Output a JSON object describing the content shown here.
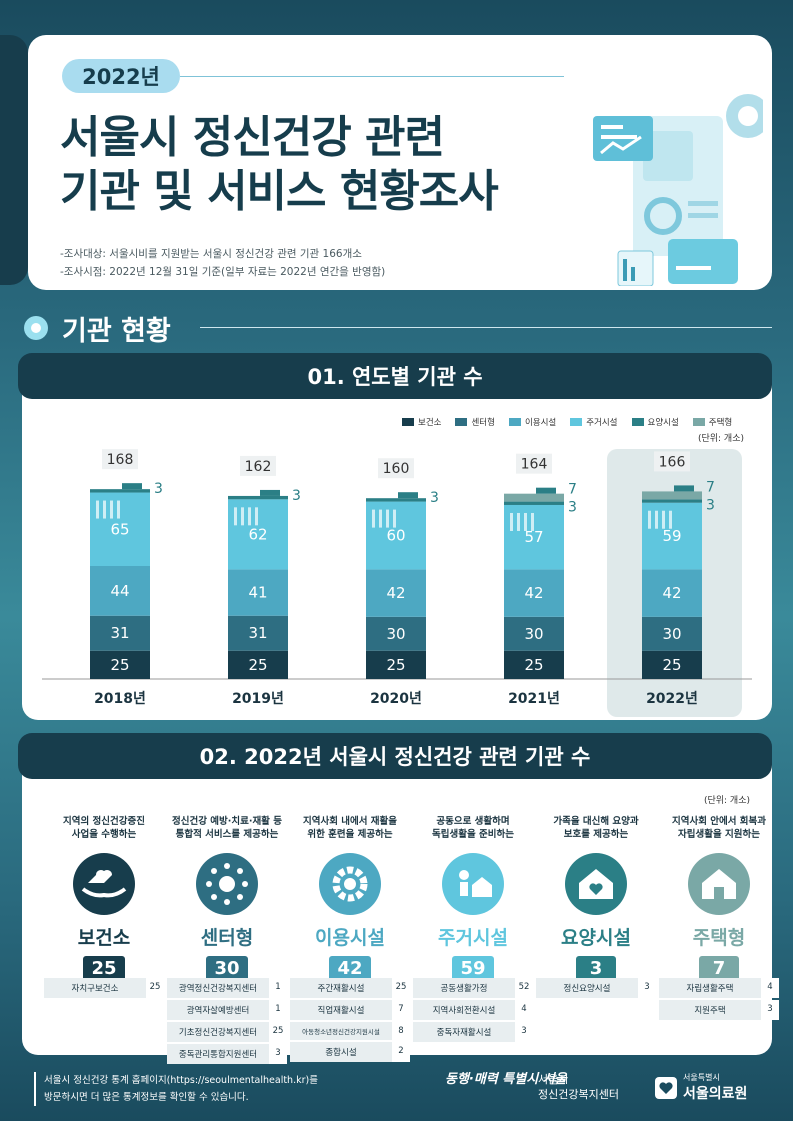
{
  "hero": {
    "year": "2022년",
    "title_line1": "서울시 정신건강 관련",
    "title_line2": "기관 및 서비스 현황조사",
    "meta1": "-조사대상: 서울시비를 지원받는 서울시 정신건강 관련 기관 166개소",
    "meta2": "-조사시점: 2022년 12월 31일 기준(일부 자료는 2022년 연간을 반영함)"
  },
  "section_title": "기관 현황",
  "colors": {
    "bogeonso": "#173d4c",
    "center": "#2e6e82",
    "iyong": "#4da8c2",
    "jugeo": "#5fc6de",
    "yoyang": "#2b7f86",
    "jutaek": "#7aa8a6"
  },
  "chart_data": {
    "type": "bar",
    "title": "01. 연도별 기관 수",
    "unit": "(단위: 개소)",
    "categories": [
      "2018년",
      "2019년",
      "2020년",
      "2021년",
      "2022년"
    ],
    "series": [
      {
        "name": "보건소",
        "values": [
          25,
          25,
          25,
          25,
          25
        ]
      },
      {
        "name": "센터형",
        "values": [
          31,
          31,
          30,
          30,
          30
        ]
      },
      {
        "name": "이용시설",
        "values": [
          44,
          41,
          42,
          42,
          42
        ]
      },
      {
        "name": "주거시설",
        "values": [
          65,
          62,
          60,
          57,
          59
        ]
      },
      {
        "name": "요양시설",
        "values": [
          3,
          3,
          3,
          3,
          3
        ]
      },
      {
        "name": "주택형",
        "values": [
          0,
          0,
          0,
          7,
          7
        ]
      }
    ],
    "totals": [
      "168",
      "162",
      "160",
      "164",
      "166"
    ],
    "side_labels": [
      [
        "3"
      ],
      [
        "3"
      ],
      [
        "3"
      ],
      [
        "7",
        "3"
      ],
      [
        "7",
        "3"
      ]
    ]
  },
  "section2": {
    "title": "02. 2022년 서울시 정신건강 관련 기관 수",
    "unit": "(단위: 개소)",
    "categories": [
      {
        "desc1": "지역의 정신건강증진",
        "desc2": "사업을 수행하는",
        "name": "보건소",
        "count": "25",
        "icon": "hands-heart-icon",
        "rows": [
          {
            "label": "자치구보건소",
            "val": "25"
          }
        ]
      },
      {
        "desc1": "정신건강 예방·치료·재활 등",
        "desc2": "통합적 서비스를 제공하는",
        "name": "센터형",
        "count": "30",
        "icon": "network-icon",
        "rows": [
          {
            "label": "광역정신건강복지센터",
            "val": "1"
          },
          {
            "label": "광역자살예방센터",
            "val": "1"
          },
          {
            "label": "기초정신건강복지센터",
            "val": "25"
          },
          {
            "label": "중독관리통합지원센터",
            "val": "3"
          }
        ]
      },
      {
        "desc1": "지역사회 내에서 재활을",
        "desc2": "위한 훈련을 제공하는",
        "name": "이용시설",
        "count": "42",
        "icon": "gear-icon",
        "rows": [
          {
            "label": "주간재활시설",
            "val": "25"
          },
          {
            "label": "직업재활시설",
            "val": "7"
          },
          {
            "label": "아동청소년정신건강지원시설",
            "val": "8"
          },
          {
            "label": "종합시설",
            "val": "2"
          }
        ]
      },
      {
        "desc1": "공동으로 생활하며",
        "desc2": "독립생활을 준비하는",
        "name": "주거시설",
        "count": "59",
        "icon": "person-house-icon",
        "rows": [
          {
            "label": "공동생활가정",
            "val": "52"
          },
          {
            "label": "지역사회전환시설",
            "val": "4"
          },
          {
            "label": "중독자재활시설",
            "val": "3"
          }
        ]
      },
      {
        "desc1": "가족을 대신해 요양과",
        "desc2": "보호를 제공하는",
        "name": "요양시설",
        "count": "3",
        "icon": "house-heart-icon",
        "rows": [
          {
            "label": "정신요양시설",
            "val": "3"
          }
        ]
      },
      {
        "desc1": "지역사회 안에서 회복과",
        "desc2": "자립생활을 지원하는",
        "name": "주택형",
        "count": "7",
        "icon": "house-icon",
        "rows": [
          {
            "label": "자립생활주택",
            "val": "4"
          },
          {
            "label": "지원주택",
            "val": "3"
          }
        ]
      }
    ]
  },
  "footer": {
    "line1": "서울시 정신건강 통계 홈페이지(https://seoulmentalhealth.kr)를",
    "line2": "방문하시면 더 많은 통계정보를 확인할 수 있습니다.",
    "logo1": "동행·매력 특별시 서울",
    "logo2_line1": "서울시",
    "logo2_line2": "정신건강복지센터",
    "logo3_small": "서울특별시",
    "logo3_big": "서울의료원"
  }
}
